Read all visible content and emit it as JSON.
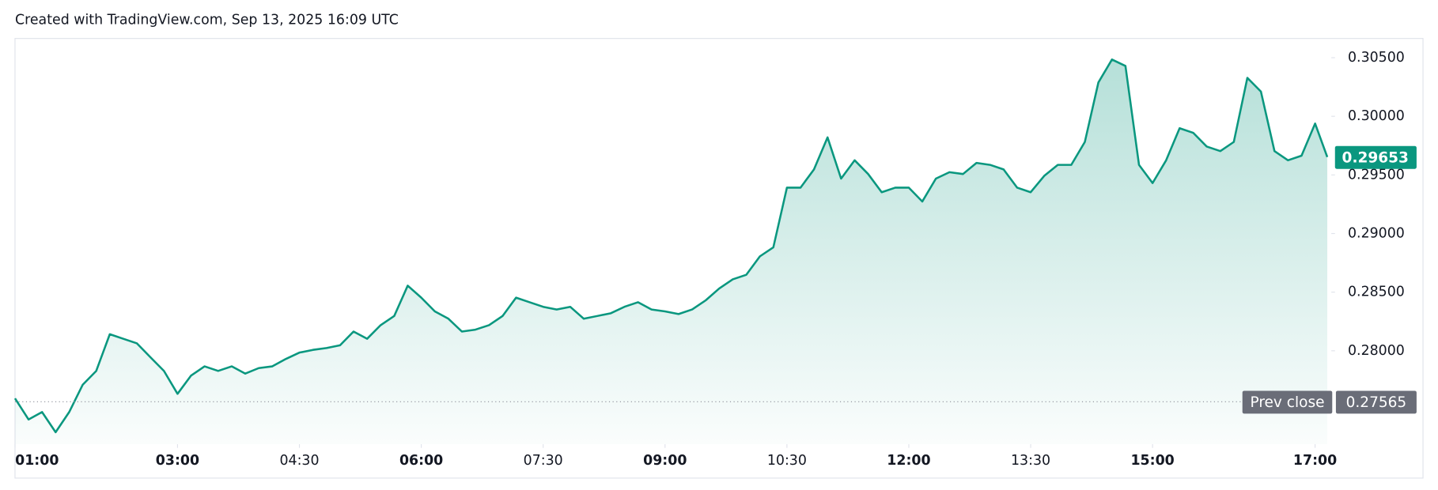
{
  "chart_data": {
    "type": "line",
    "title": "Created with TradingView.com, Sep 13, 2025 16:09 UTC",
    "color": "#0a977f",
    "x": [
      "01:00",
      "01:10",
      "01:20",
      "01:30",
      "01:40",
      "01:50",
      "02:00",
      "02:10",
      "02:20",
      "02:30",
      "02:40",
      "02:50",
      "03:00",
      "03:10",
      "03:20",
      "03:30",
      "03:40",
      "03:50",
      "04:00",
      "04:10",
      "04:20",
      "04:30",
      "04:40",
      "04:50",
      "05:00",
      "05:10",
      "05:20",
      "05:30",
      "05:40",
      "05:50",
      "06:00",
      "06:10",
      "06:20",
      "06:30",
      "06:40",
      "06:50",
      "07:00",
      "07:10",
      "07:20",
      "07:30",
      "07:40",
      "07:50",
      "08:00",
      "08:10",
      "08:20",
      "08:30",
      "08:40",
      "08:50",
      "09:00",
      "09:10",
      "09:20",
      "09:30",
      "09:40",
      "09:50",
      "10:00",
      "10:10",
      "10:20",
      "10:30",
      "10:40",
      "10:50",
      "11:00",
      "11:10",
      "11:20",
      "11:30",
      "11:40",
      "11:50",
      "12:00",
      "12:10",
      "12:20",
      "12:30",
      "12:40",
      "12:50",
      "13:00",
      "13:10",
      "13:20",
      "13:30",
      "13:40",
      "13:50",
      "14:00",
      "14:10",
      "14:20",
      "14:30",
      "14:40",
      "14:50",
      "15:00",
      "15:10",
      "15:20",
      "15:30",
      "15:40",
      "15:50",
      "16:00",
      "16:10",
      "16:20",
      "16:30",
      "16:40",
      "16:50",
      "17:00",
      "17:09"
    ],
    "values": [
      0.27594,
      0.27414,
      0.27477,
      0.27305,
      0.27477,
      0.27711,
      0.27828,
      0.28141,
      0.28102,
      0.28063,
      0.27945,
      0.27828,
      0.27633,
      0.27789,
      0.27867,
      0.27828,
      0.27867,
      0.27805,
      0.27852,
      0.27867,
      0.2793,
      0.27984,
      0.28008,
      0.28023,
      0.28047,
      0.28164,
      0.28102,
      0.28219,
      0.28297,
      0.28555,
      0.28453,
      0.28336,
      0.28273,
      0.28164,
      0.2818,
      0.28219,
      0.28297,
      0.28453,
      0.28414,
      0.28375,
      0.28352,
      0.28375,
      0.28273,
      0.28297,
      0.2832,
      0.28375,
      0.28414,
      0.28352,
      0.28336,
      0.28313,
      0.28352,
      0.2843,
      0.28531,
      0.28609,
      0.28648,
      0.28805,
      0.28883,
      0.29391,
      0.29391,
      0.29547,
      0.2982,
      0.29469,
      0.29625,
      0.29508,
      0.29352,
      0.29391,
      0.29391,
      0.29273,
      0.29469,
      0.29523,
      0.29508,
      0.29602,
      0.29586,
      0.29547,
      0.29391,
      0.29352,
      0.29492,
      0.29586,
      0.29586,
      0.29781,
      0.30289,
      0.30484,
      0.3043,
      0.29586,
      0.2943,
      0.29625,
      0.29898,
      0.29859,
      0.29742,
      0.29703,
      0.29781,
      0.30328,
      0.30211,
      0.29703,
      0.29625,
      0.29664,
      0.29938,
      0.29653
    ],
    "xlim": [
      "01:00",
      "17:12"
    ],
    "xticks": [
      "01:00",
      "03:00",
      "04:30",
      "06:00",
      "07:30",
      "09:00",
      "10:30",
      "12:00",
      "13:30",
      "15:00",
      "17:00"
    ],
    "ylim": [
      0.27203,
      0.30664
    ],
    "yticks": [
      {
        "value": 0.28,
        "label": "0.28000"
      },
      {
        "value": 0.285,
        "label": "0.28500"
      },
      {
        "value": 0.29,
        "label": "0.29000"
      },
      {
        "value": 0.295,
        "label": "0.29500"
      },
      {
        "value": 0.3,
        "label": "0.30000"
      },
      {
        "value": 0.305,
        "label": "0.30500"
      }
    ],
    "last_price": 0.29653,
    "prev_close_label": "Prev close",
    "prev_close": 0.27565
  }
}
